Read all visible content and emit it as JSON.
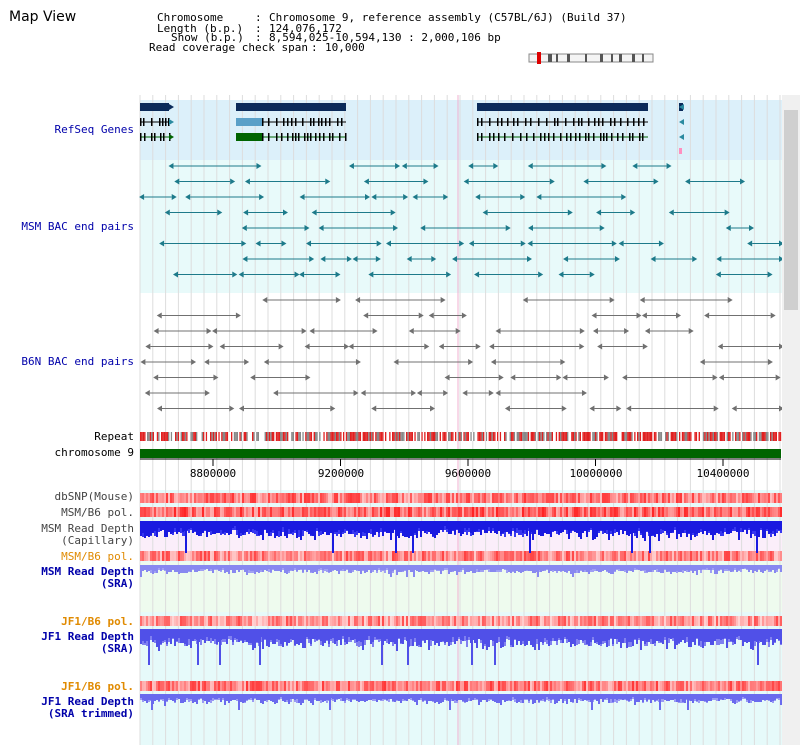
{
  "title": "Map View",
  "info": {
    "chromosome_label": "Chromosome",
    "chromosome_value": "Chromosome 9, reference assembly (C57BL/6J) (Build 37)",
    "length_label": "Length (b.p.)",
    "length_value": "124,076,172",
    "show_label": "Show (b.p.)",
    "show_value": "8,594,025-10,594,130 : 2,000,106 bp",
    "span_label": "Read coverage check span",
    "span_value": "10,000"
  },
  "tracks": {
    "refseq": "RefSeq Genes",
    "msm_bac": "MSM BAC end pairs",
    "b6n_bac": "B6N BAC end pairs",
    "repeat": "Repeat",
    "chromosome": "chromosome 9",
    "dbsnp": "dbSNP(Mouse)",
    "msm_b6_pol_1": "MSM/B6 pol.",
    "msm_read_depth_cap_1": "MSM Read Depth",
    "msm_read_depth_cap_2": "(Capillary)",
    "msm_b6_pol_2": "MSM/B6 pol.",
    "msm_read_depth_sra_1": "MSM Read Depth",
    "msm_read_depth_sra_2": "(SRA)",
    "jf1_b6_pol_1": "JF1/B6 pol.",
    "jf1_read_depth_sra_1": "JF1 Read Depth",
    "jf1_read_depth_sra_2": "(SRA)",
    "jf1_b6_pol_2": "JF1/B6 pol.",
    "jf1_read_depth_trim_1": "JF1 Read Depth",
    "jf1_read_depth_trim_2": "(SRA trimmed)"
  },
  "axis": {
    "ticks": [
      "8800000",
      "9200000",
      "9600000",
      "10000000",
      "10400000"
    ]
  },
  "colors": {
    "refseq_bg": "#dcf0fa",
    "msm_bg": "#e8fafa",
    "navy": "#0a2a5a",
    "teal": "#2a8aa0",
    "green": "#006400",
    "red": "#e00000",
    "label_blue": "#0000aa",
    "label_orange": "#e08a00",
    "depth_blue": "#2020e0",
    "depth_light": "#8080f0"
  }
}
